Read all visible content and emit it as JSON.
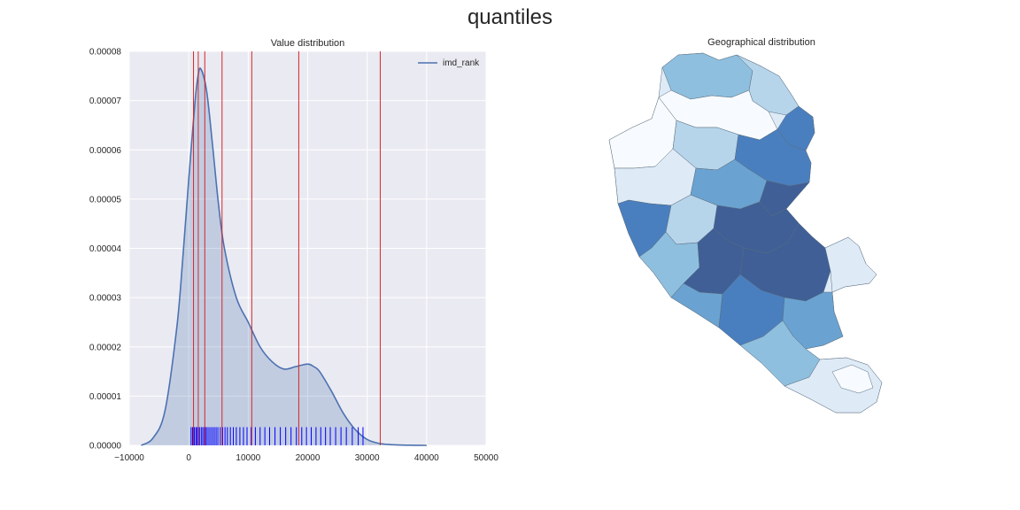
{
  "suptitle": "quantiles",
  "chart_data": [
    {
      "type": "area",
      "title": "Value distribution",
      "xlabel": "",
      "ylabel": "",
      "xlim": [
        -10000,
        50000
      ],
      "ylim": [
        0,
        8e-05
      ],
      "x_ticks": [
        -10000,
        0,
        10000,
        20000,
        30000,
        40000,
        50000
      ],
      "x_tick_labels": [
        "−10000",
        "0",
        "10000",
        "20000",
        "30000",
        "40000",
        "50000"
      ],
      "y_ticks": [
        0,
        1e-05,
        2e-05,
        3e-05,
        4e-05,
        5e-05,
        6e-05,
        7e-05,
        8e-05
      ],
      "y_tick_labels": [
        "0.00000",
        "0.00001",
        "0.00002",
        "0.00003",
        "0.00004",
        "0.00005",
        "0.00006",
        "0.00007",
        "0.00008"
      ],
      "grid": true,
      "legend": "top-right",
      "series": [
        {
          "name": "imd_rank",
          "color": "#4c72b0",
          "x": [
            -8000,
            -6000,
            -4000,
            -2000,
            -1000,
            0,
            1000,
            1500,
            2000,
            3000,
            4000,
            5000,
            6000,
            8000,
            10000,
            12000,
            14000,
            16000,
            18000,
            20000,
            21000,
            22000,
            24000,
            26000,
            28000,
            30000,
            32000,
            34000,
            36000,
            38000,
            40000
          ],
          "y": [
            0.0,
            1.5e-06,
            7e-06,
            2.4e-05,
            3.8e-05,
            5.4e-05,
            6.9e-05,
            7.45e-05,
            7.65e-05,
            7.2e-05,
            6.1e-05,
            4.9e-05,
            4e-05,
            3e-05,
            2.5e-05,
            2e-05,
            1.7e-05,
            1.55e-05,
            1.6e-05,
            1.65e-05,
            1.6e-05,
            1.5e-05,
            1.1e-05,
            6.5e-06,
            3.2e-06,
            1.2e-06,
            4e-07,
            1.5e-07,
            5e-08,
            2e-08,
            0.0
          ]
        }
      ],
      "quantile_lines": [
        800,
        1600,
        2700,
        5600,
        10600,
        18500,
        32200
      ],
      "quantile_line_color": "#d62728",
      "rug_color": "#0000ff",
      "rug": [
        400,
        650,
        950,
        1200,
        1400,
        1650,
        1800,
        2100,
        2350,
        2600,
        2850,
        3100,
        3400,
        3700,
        4000,
        4300,
        4600,
        4900,
        5300,
        5700,
        6100,
        6500,
        7000,
        7500,
        8000,
        8600,
        9200,
        9800,
        10500,
        11200,
        12000,
        12800,
        13600,
        14500,
        15400,
        16300,
        17200,
        18100,
        19000,
        19800,
        20600,
        21400,
        22200,
        23000,
        23800,
        24700,
        25600,
        26500,
        27500,
        28500,
        29300
      ]
    },
    {
      "type": "map",
      "title": "Geographical distribution",
      "palette": [
        "#f7fbff",
        "#deebf7",
        "#b6d4ea",
        "#8ebfde",
        "#6aa3d1",
        "#4a7fbf",
        "#3f5f96"
      ]
    }
  ]
}
